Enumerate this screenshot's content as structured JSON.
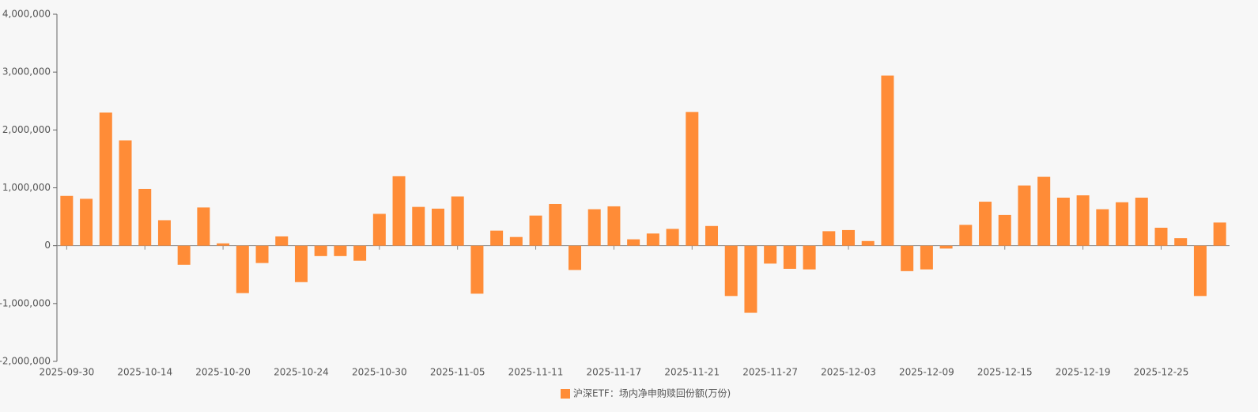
{
  "chart_data": {
    "type": "bar",
    "categories": [
      "2025-09-30",
      null,
      null,
      null,
      "2025-10-14",
      null,
      null,
      null,
      "2025-10-20",
      null,
      null,
      null,
      "2025-10-24",
      null,
      null,
      null,
      "2025-10-30",
      null,
      null,
      null,
      "2025-11-05",
      null,
      null,
      null,
      "2025-11-11",
      null,
      null,
      null,
      "2025-11-17",
      null,
      null,
      null,
      "2025-11-21",
      null,
      null,
      null,
      "2025-11-27",
      null,
      null,
      null,
      "2025-12-03",
      null,
      null,
      null,
      "2025-12-09",
      null,
      null,
      null,
      "2025-12-15",
      null,
      null,
      null,
      "2025-12-19",
      null,
      null,
      null,
      "2025-12-25",
      null,
      null,
      null
    ],
    "series": [
      {
        "name": "沪深ETF：场内净申购赎回份额(万份)",
        "color": "#ff8c37",
        "values": [
          860000,
          810000,
          2300000,
          1820000,
          980000,
          440000,
          -330000,
          660000,
          40000,
          -820000,
          -300000,
          160000,
          -630000,
          -180000,
          -180000,
          -260000,
          550000,
          1200000,
          670000,
          640000,
          850000,
          -830000,
          260000,
          150000,
          520000,
          720000,
          -420000,
          630000,
          680000,
          110000,
          210000,
          290000,
          2310000,
          340000,
          -870000,
          -1160000,
          -310000,
          -400000,
          -410000,
          250000,
          270000,
          80000,
          2940000,
          -440000,
          -410000,
          -50000,
          360000,
          760000,
          530000,
          1040000,
          1190000,
          830000,
          870000,
          630000,
          750000,
          830000,
          310000,
          130000,
          -870000,
          400000
        ]
      }
    ],
    "ylim": [
      -2000000,
      4000000
    ],
    "yticks": [
      {
        "value": -2000000,
        "label": "-2,000,000"
      },
      {
        "value": -1000000,
        "label": "-1,000,000"
      },
      0,
      {
        "value": 1000000,
        "label": "1,000,000"
      },
      {
        "value": 2000000,
        "label": "2,000,000"
      },
      {
        "value": 3000000,
        "label": "3,000,000"
      },
      {
        "value": 4000000,
        "label": "4,000,000"
      }
    ],
    "grid": false,
    "legend": "bottom"
  }
}
